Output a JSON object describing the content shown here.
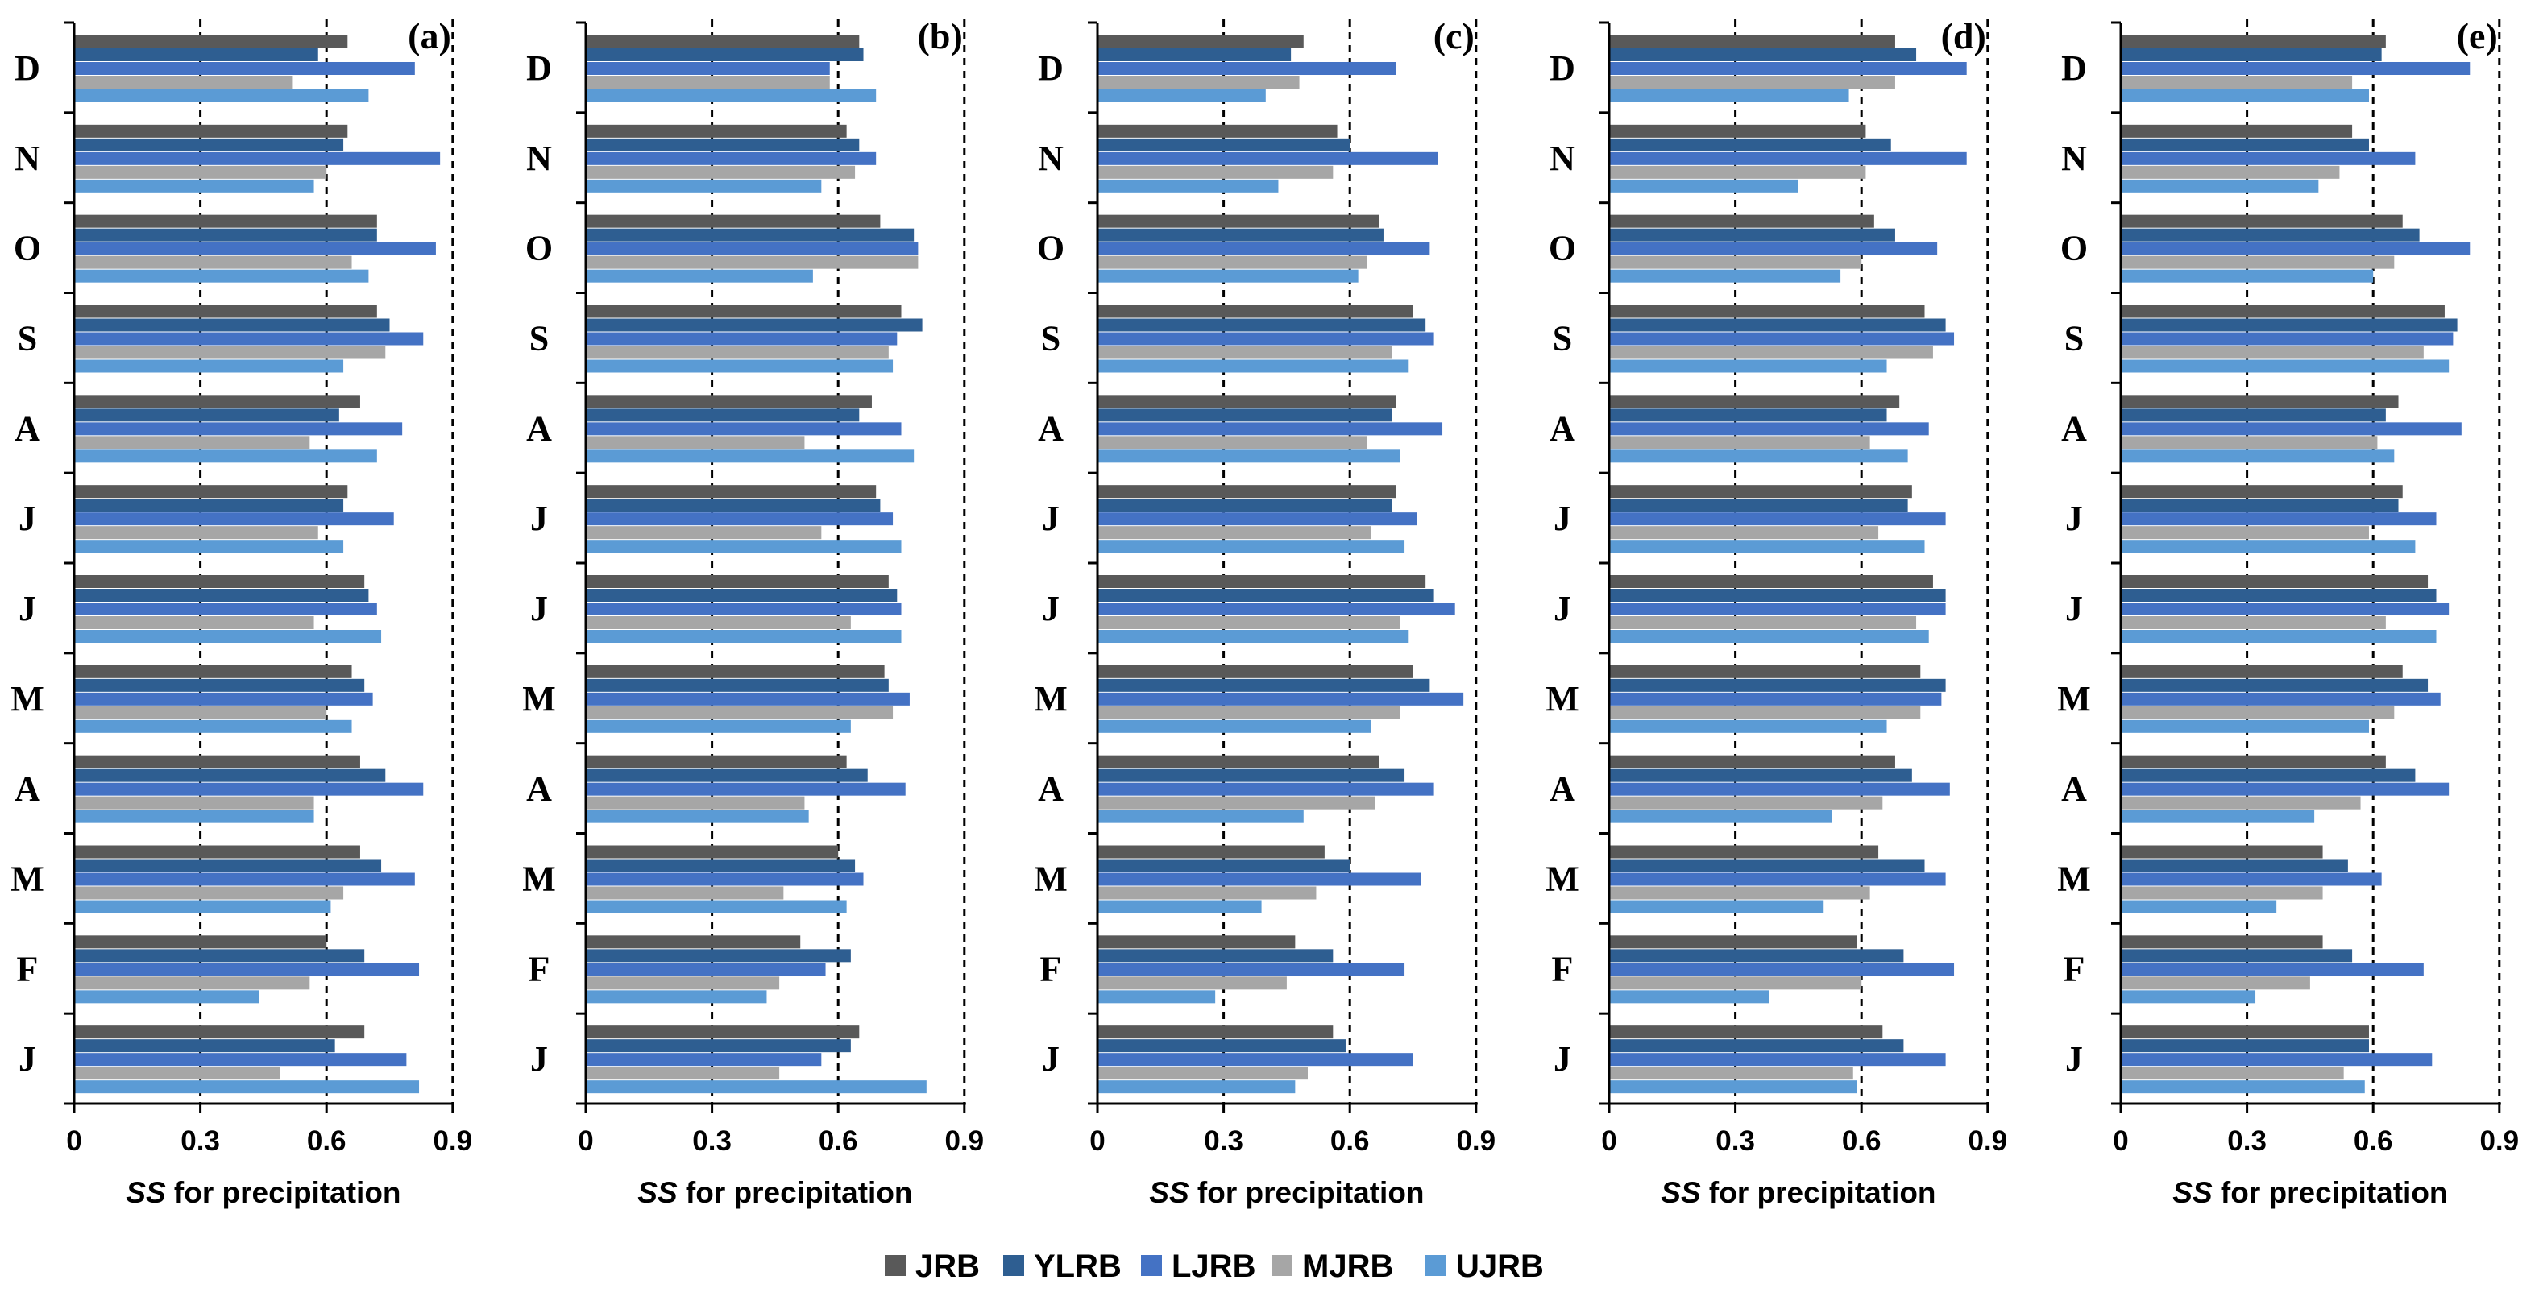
{
  "chart_data": {
    "type": "bar",
    "orientation": "horizontal",
    "xlabel_italic": "SS",
    "xlabel_rest": " for precipitation",
    "xlim": [
      0,
      0.9
    ],
    "xticks": [
      "0",
      "0.3",
      "0.6",
      "0.9"
    ],
    "xtick_values": [
      0,
      0.3,
      0.6,
      0.9
    ],
    "grid": "dashed vertical lines at 0.3, 0.6, 0.9",
    "categories": [
      "D",
      "N",
      "O",
      "S",
      "A",
      "J",
      "J",
      "M",
      "A",
      "M",
      "F",
      "J"
    ],
    "legend": {
      "position": "bottom-center",
      "entries": [
        {
          "name": "JRB",
          "color": "#595959"
        },
        {
          "name": "YLRB",
          "color": "#2E5E91"
        },
        {
          "name": "LJRB",
          "color": "#4472C4"
        },
        {
          "name": "MJRB",
          "color": "#A6A6A6"
        },
        {
          "name": "UJRB",
          "color": "#5B9BD5"
        }
      ]
    },
    "panels": [
      {
        "label": "(a)",
        "series": [
          {
            "name": "JRB",
            "values": [
              0.65,
              0.65,
              0.72,
              0.72,
              0.68,
              0.65,
              0.69,
              0.66,
              0.68,
              0.68,
              0.6,
              0.69
            ]
          },
          {
            "name": "YLRB",
            "values": [
              0.58,
              0.64,
              0.72,
              0.75,
              0.63,
              0.64,
              0.7,
              0.69,
              0.74,
              0.73,
              0.69,
              0.62
            ]
          },
          {
            "name": "LJRB",
            "values": [
              0.81,
              0.87,
              0.86,
              0.83,
              0.78,
              0.76,
              0.72,
              0.71,
              0.83,
              0.81,
              0.82,
              0.79
            ]
          },
          {
            "name": "MJRB",
            "values": [
              0.52,
              0.6,
              0.66,
              0.74,
              0.56,
              0.58,
              0.57,
              0.6,
              0.57,
              0.64,
              0.56,
              0.49
            ]
          },
          {
            "name": "UJRB",
            "values": [
              0.7,
              0.57,
              0.7,
              0.64,
              0.72,
              0.64,
              0.73,
              0.66,
              0.57,
              0.61,
              0.44,
              0.82
            ]
          }
        ]
      },
      {
        "label": "(b)",
        "series": [
          {
            "name": "JRB",
            "values": [
              0.65,
              0.62,
              0.7,
              0.75,
              0.68,
              0.69,
              0.72,
              0.71,
              0.62,
              0.6,
              0.51,
              0.65
            ]
          },
          {
            "name": "YLRB",
            "values": [
              0.66,
              0.65,
              0.78,
              0.8,
              0.65,
              0.7,
              0.74,
              0.72,
              0.67,
              0.64,
              0.63,
              0.63
            ]
          },
          {
            "name": "LJRB",
            "values": [
              0.58,
              0.69,
              0.79,
              0.74,
              0.75,
              0.73,
              0.75,
              0.77,
              0.76,
              0.66,
              0.57,
              0.56
            ]
          },
          {
            "name": "MJRB",
            "values": [
              0.58,
              0.64,
              0.79,
              0.72,
              0.52,
              0.56,
              0.63,
              0.73,
              0.52,
              0.47,
              0.46,
              0.46
            ]
          },
          {
            "name": "UJRB",
            "values": [
              0.69,
              0.56,
              0.54,
              0.73,
              0.78,
              0.75,
              0.75,
              0.63,
              0.53,
              0.62,
              0.43,
              0.81
            ]
          }
        ]
      },
      {
        "label": "(c)",
        "series": [
          {
            "name": "JRB",
            "values": [
              0.49,
              0.57,
              0.67,
              0.75,
              0.71,
              0.71,
              0.78,
              0.75,
              0.67,
              0.54,
              0.47,
              0.56
            ]
          },
          {
            "name": "YLRB",
            "values": [
              0.46,
              0.6,
              0.68,
              0.78,
              0.7,
              0.7,
              0.8,
              0.79,
              0.73,
              0.6,
              0.56,
              0.59
            ]
          },
          {
            "name": "LJRB",
            "values": [
              0.71,
              0.81,
              0.79,
              0.8,
              0.82,
              0.76,
              0.85,
              0.87,
              0.8,
              0.77,
              0.73,
              0.75
            ]
          },
          {
            "name": "MJRB",
            "values": [
              0.48,
              0.56,
              0.64,
              0.7,
              0.64,
              0.65,
              0.72,
              0.72,
              0.66,
              0.52,
              0.45,
              0.5
            ]
          },
          {
            "name": "UJRB",
            "values": [
              0.4,
              0.43,
              0.62,
              0.74,
              0.72,
              0.73,
              0.74,
              0.65,
              0.49,
              0.39,
              0.28,
              0.47
            ]
          }
        ]
      },
      {
        "label": "(d)",
        "series": [
          {
            "name": "JRB",
            "values": [
              0.68,
              0.61,
              0.63,
              0.75,
              0.69,
              0.72,
              0.77,
              0.74,
              0.68,
              0.64,
              0.59,
              0.65
            ]
          },
          {
            "name": "YLRB",
            "values": [
              0.73,
              0.67,
              0.68,
              0.8,
              0.66,
              0.71,
              0.8,
              0.8,
              0.72,
              0.75,
              0.7,
              0.7
            ]
          },
          {
            "name": "LJRB",
            "values": [
              0.85,
              0.85,
              0.78,
              0.82,
              0.76,
              0.8,
              0.8,
              0.79,
              0.81,
              0.8,
              0.82,
              0.8
            ]
          },
          {
            "name": "MJRB",
            "values": [
              0.68,
              0.61,
              0.6,
              0.77,
              0.62,
              0.64,
              0.73,
              0.74,
              0.65,
              0.62,
              0.6,
              0.58
            ]
          },
          {
            "name": "UJRB",
            "values": [
              0.57,
              0.45,
              0.55,
              0.66,
              0.71,
              0.75,
              0.76,
              0.66,
              0.53,
              0.51,
              0.38,
              0.59
            ]
          }
        ]
      },
      {
        "label": "(e)",
        "series": [
          {
            "name": "JRB",
            "values": [
              0.63,
              0.55,
              0.67,
              0.77,
              0.66,
              0.67,
              0.73,
              0.67,
              0.63,
              0.48,
              0.48,
              0.59
            ]
          },
          {
            "name": "YLRB",
            "values": [
              0.62,
              0.59,
              0.71,
              0.8,
              0.63,
              0.66,
              0.75,
              0.73,
              0.7,
              0.54,
              0.55,
              0.59
            ]
          },
          {
            "name": "LJRB",
            "values": [
              0.83,
              0.7,
              0.83,
              0.79,
              0.81,
              0.75,
              0.78,
              0.76,
              0.78,
              0.62,
              0.72,
              0.74
            ]
          },
          {
            "name": "MJRB",
            "values": [
              0.55,
              0.52,
              0.65,
              0.72,
              0.61,
              0.59,
              0.63,
              0.65,
              0.57,
              0.48,
              0.45,
              0.53
            ]
          },
          {
            "name": "UJRB",
            "values": [
              0.59,
              0.47,
              0.6,
              0.78,
              0.65,
              0.7,
              0.75,
              0.59,
              0.46,
              0.37,
              0.32,
              0.58
            ]
          }
        ]
      }
    ]
  }
}
